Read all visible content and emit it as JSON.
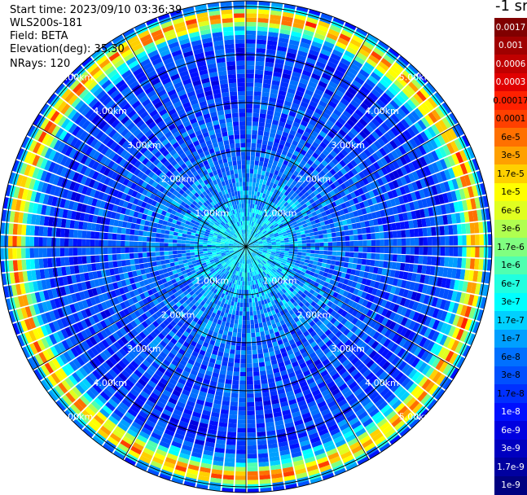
{
  "info": {
    "start_time": "Start time: 2023/09/10 03:36:39",
    "instrument": "WLS200s-181",
    "field": "Field: BETA",
    "elevation": "Elevation(deg): 35.30",
    "nrays": "NRays: 120"
  },
  "chart_data": {
    "type": "heatmap",
    "projection": "polar-ppi",
    "field": "BETA",
    "n_rays": 120,
    "range_rings_km": [
      1,
      2,
      3,
      4,
      5
    ],
    "range_ring_labels": [
      "1.00km",
      "2.00km",
      "3.00km",
      "4.00km",
      "5.00km"
    ],
    "max_range_km": 5.1,
    "spokes_deg": [
      0,
      30,
      60,
      90,
      120,
      150,
      180,
      210,
      240,
      270,
      300,
      330
    ],
    "radial_profile": [
      {
        "range_km": 0.0,
        "value": 2.5e-07
      },
      {
        "range_km": 0.5,
        "value": 2e-07
      },
      {
        "range_km": 1.0,
        "value": 1e-07
      },
      {
        "range_km": 1.5,
        "value": 6e-08
      },
      {
        "range_km": 2.0,
        "value": 4e-08
      },
      {
        "range_km": 2.5,
        "value": 3e-08
      },
      {
        "range_km": 3.0,
        "value": 2.5e-08
      },
      {
        "range_km": 3.5,
        "value": 2e-08
      },
      {
        "range_km": 4.0,
        "value": 2e-08
      },
      {
        "range_km": 4.3,
        "value": 3e-08
      },
      {
        "range_km": 4.55,
        "value": 3e-07
      },
      {
        "range_km": 4.7,
        "value": 1.5e-05
      },
      {
        "range_km": 4.85,
        "value": 5e-05
      },
      {
        "range_km": 4.95,
        "value": 1e-06
      },
      {
        "range_km": 5.05,
        "value": 3e-08
      }
    ],
    "colorbar": {
      "title": "-1 sr",
      "labels": [
        "0.0017",
        "0.001",
        "0.0006",
        "0.0003",
        "0.00017",
        "0.0001",
        "6e-5",
        "3e-5",
        "1.7e-5",
        "1e-5",
        "6e-6",
        "3e-6",
        "1.7e-6",
        "1e-6",
        "6e-7",
        "3e-7",
        "1.7e-7",
        "1e-7",
        "6e-8",
        "3e-8",
        "1.7e-8",
        "1e-8",
        "6e-9",
        "3e-9",
        "1.7e-9",
        "1e-9"
      ],
      "colors": [
        "#800000",
        "#a00000",
        "#c00000",
        "#e00000",
        "#ff2000",
        "#ff4000",
        "#ff7000",
        "#ffa000",
        "#ffd000",
        "#ffff00",
        "#e0ff20",
        "#b0ff50",
        "#80ff80",
        "#50ffb0",
        "#20ffe0",
        "#00ffff",
        "#00d0ff",
        "#00a0ff",
        "#0070ff",
        "#0050ff",
        "#0030ff",
        "#0010ff",
        "#0000e0",
        "#0000c0",
        "#0000a0",
        "#000080"
      ],
      "text_colors": [
        "#ffffff",
        "#ffffff",
        "#ffffff",
        "#ffffff",
        "#000000",
        "#000000",
        "#000000",
        "#000000",
        "#000000",
        "#000000",
        "#000000",
        "#000000",
        "#000000",
        "#000000",
        "#000000",
        "#000000",
        "#000000",
        "#000000",
        "#000000",
        "#000000",
        "#000000",
        "#ffffff",
        "#ffffff",
        "#ffffff",
        "#ffffff",
        "#ffffff"
      ]
    }
  }
}
